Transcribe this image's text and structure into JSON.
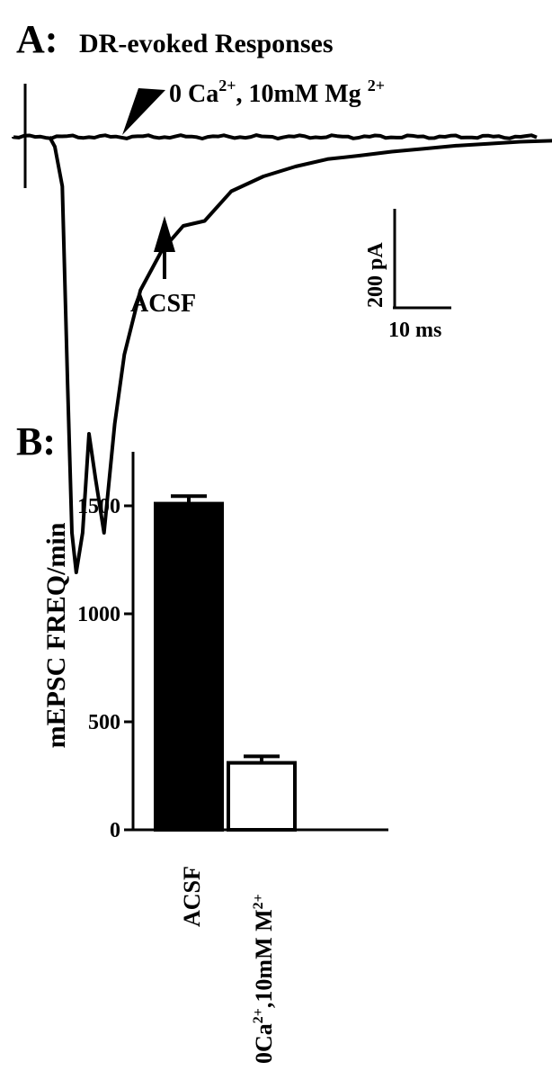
{
  "chart_data": [
    {
      "type": "line",
      "panel_label": "A:",
      "title": "DR-evoked Responses",
      "series": [
        {
          "name": "0 Ca²⁺, 10mM Mg ²⁺",
          "description": "flat trace with only stimulus artifact"
        },
        {
          "name": "ACSF",
          "description": "inward evoked current"
        }
      ],
      "annotations": {
        "mg_label_prefix": "0 Ca",
        "mg_label_sup1": "2+",
        "mg_label_mid": ", 10mM Mg ",
        "mg_label_sup2": "2+",
        "acsf_label": "ACSF"
      },
      "scale_bar": {
        "y_label": "200 pA",
        "y_value": 200,
        "y_unit": "pA",
        "x_label": "10 ms",
        "x_value": 10,
        "x_unit": "ms"
      },
      "trace_acsf": {
        "t_ms": [
          0,
          0.5,
          1.2,
          1.7,
          2.1,
          2.5,
          3.1,
          3.7,
          4.3,
          5.1,
          6.1,
          7.0,
          8.5,
          10.5,
          12.5,
          14.5,
          17,
          20,
          23,
          26,
          29,
          32,
          35,
          38,
          41,
          44,
          47
        ],
        "current_pA": [
          0,
          -20,
          -100,
          -500,
          -800,
          -880,
          -800,
          -600,
          -690,
          -800,
          -580,
          -440,
          -310,
          -230,
          -180,
          -170,
          -110,
          -80,
          -60,
          -45,
          -38,
          -30,
          -24,
          -18,
          -14,
          -10,
          -8
        ]
      }
    },
    {
      "type": "bar",
      "panel_label": "B:",
      "ylabel": "mEPSC FREQ/min",
      "categories": [
        "ACSF",
        "0Ca²⁺,10mM M²⁺"
      ],
      "values": [
        1510,
        310
      ],
      "errors": [
        35,
        30
      ],
      "bar_colors": [
        "#000000",
        "#ffffff"
      ],
      "ylim": [
        0,
        1750
      ],
      "yticks": [
        0,
        500,
        1000,
        1500
      ],
      "ytick_labels": [
        "0",
        "500",
        "1000",
        "1500"
      ],
      "category2_parts": {
        "prefix": "0Ca",
        "sup1": "2+",
        "mid": ",10mM M",
        "sup2": "2+"
      }
    }
  ]
}
